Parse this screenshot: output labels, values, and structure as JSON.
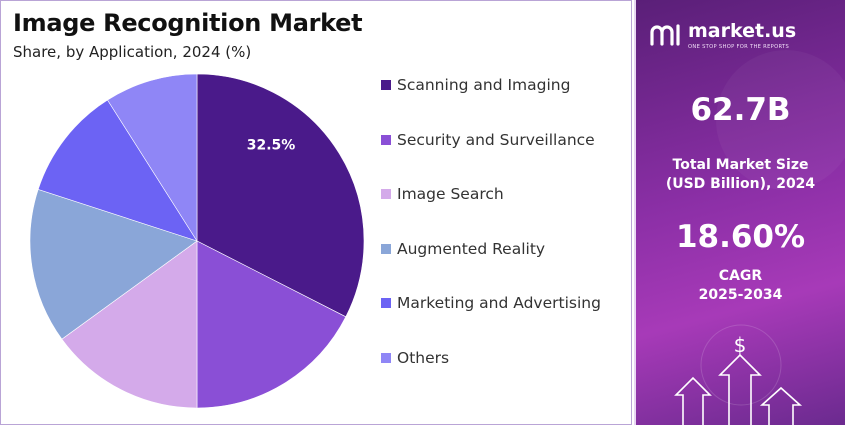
{
  "chart_data": {
    "type": "pie",
    "title": "Image Recognition Market",
    "subtitle": "Share, by Application, 2024 (%)",
    "slices": [
      {
        "label": "Scanning and Imaging",
        "value": 32.5,
        "color": "#4a1a8a",
        "show_label": true
      },
      {
        "label": "Security and Surveillance",
        "value": 17.5,
        "color": "#8a4fd6",
        "show_label": false
      },
      {
        "label": "Image Search",
        "value": 15.0,
        "color": "#d4aaea",
        "show_label": false
      },
      {
        "label": "Augmented Reality",
        "value": 15.0,
        "color": "#8aa6d8",
        "show_label": false
      },
      {
        "label": "Marketing and Advertising",
        "value": 11.0,
        "color": "#6c63f4",
        "show_label": false
      },
      {
        "label": "Others",
        "value": 9.0,
        "color": "#8f86f6",
        "show_label": false
      }
    ],
    "data_labels": [
      "32.5%"
    ],
    "legend_position": "right"
  },
  "brand": {
    "name": "market.us",
    "tagline": "ONE STOP SHOP FOR THE REPORTS",
    "logo_icon": "market-us-logo-icon"
  },
  "stats": {
    "market_size_value": "62.7B",
    "market_size_label_line1": "Total Market Size",
    "market_size_label_line2": "(USD Billion), 2024",
    "cagr_value": "18.60%",
    "cagr_label_line1": "CAGR",
    "cagr_label_line2": "2025-2034"
  },
  "decoration": {
    "dollar_symbol": "$",
    "icons": [
      "growth-arrows-icon"
    ]
  },
  "colors": {
    "panel_gradient_start": "#5a1f78",
    "panel_gradient_end": "#a73ab8"
  }
}
